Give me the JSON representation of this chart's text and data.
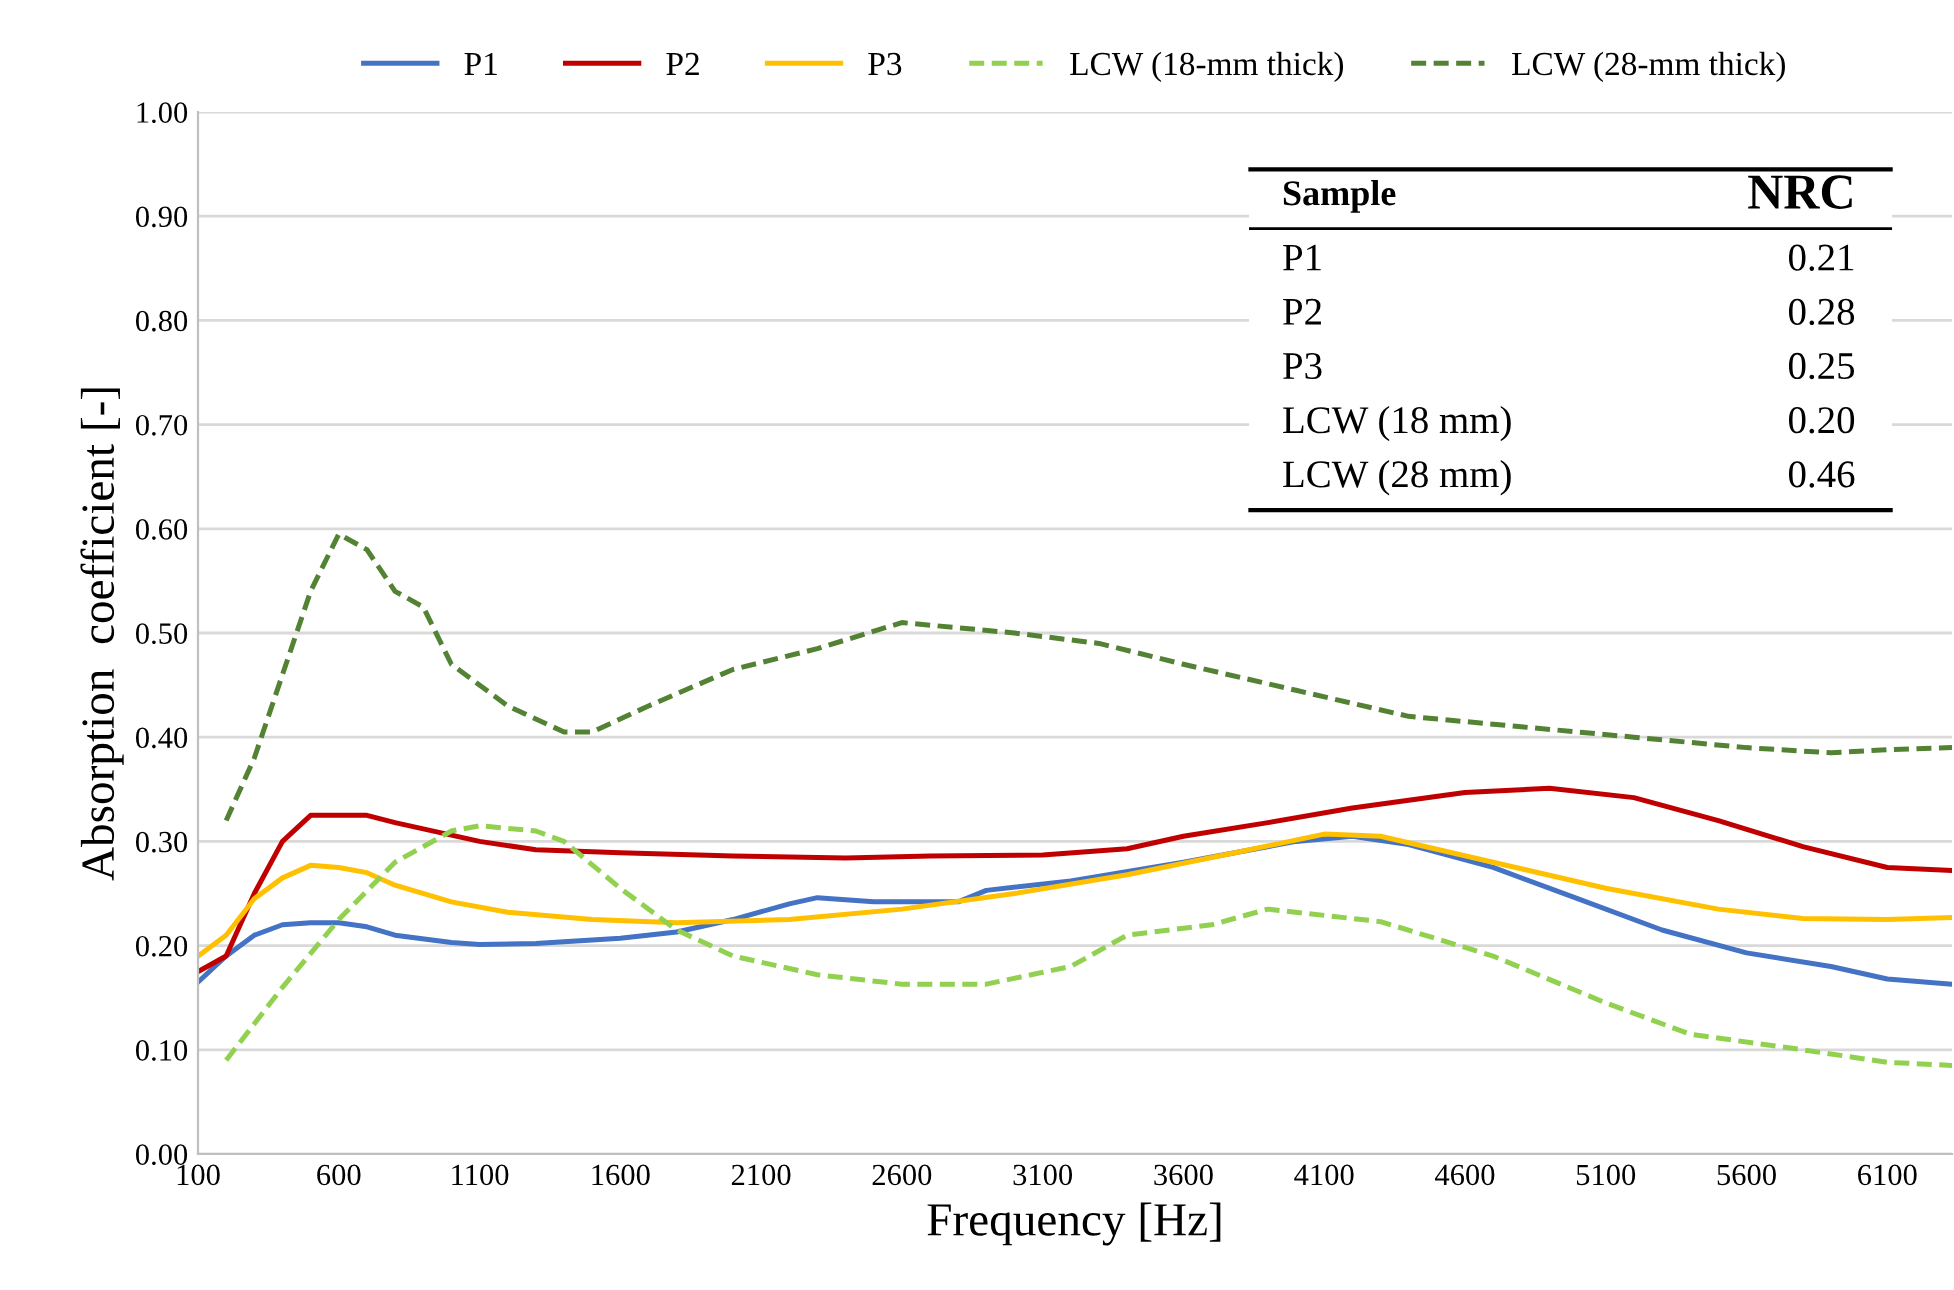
{
  "chart_data": {
    "type": "line",
    "xlabel": "Frequency [Hz]",
    "ylabel": "Absorption  coefficient [-]",
    "legend": "top",
    "grid": "y",
    "xlim": [
      100,
      6330
    ],
    "ylim": [
      0,
      1
    ],
    "xticks": [
      100,
      600,
      1100,
      1600,
      2100,
      2600,
      3100,
      3600,
      4100,
      4600,
      5100,
      5600,
      6100
    ],
    "yticks": [
      {
        "value": 0,
        "label": "0.00"
      },
      {
        "value": 0.1,
        "label": "0.10"
      },
      {
        "value": 0.2,
        "label": "0.20"
      },
      {
        "value": 0.3,
        "label": "0.30"
      },
      {
        "value": 0.4,
        "label": "0.40"
      },
      {
        "value": 0.5,
        "label": "0.50"
      },
      {
        "value": 0.6,
        "label": "0.60"
      },
      {
        "value": 0.7,
        "label": "0.70"
      },
      {
        "value": 0.8,
        "label": "0.80"
      },
      {
        "value": 0.9,
        "label": "0.90"
      },
      {
        "value": 1,
        "label": "1.00"
      }
    ],
    "annotations": [
      "Sample",
      "NRC",
      "P1",
      "0.21",
      "P2",
      "0.28",
      "P3",
      "0.25",
      "LCW (18 mm)",
      "0.20",
      "LCW (28 mm)",
      "0.46"
    ],
    "series": [
      {
        "name": "P1",
        "color": "#4472c4",
        "line_style": "solid",
        "x": [
          100,
          200,
          300,
          400,
          500,
          600,
          700,
          800,
          1000,
          1100,
          1300,
          1600,
          1800,
          2000,
          2200,
          2300,
          2500,
          2800,
          2900,
          3200,
          3600,
          4000,
          4200,
          4400,
          4700,
          5000,
          5300,
          5600,
          5900,
          6100,
          6330
        ],
        "values": [
          0.165,
          0.19,
          0.21,
          0.22,
          0.222,
          0.222,
          0.218,
          0.21,
          0.203,
          0.201,
          0.202,
          0.207,
          0.213,
          0.225,
          0.24,
          0.246,
          0.242,
          0.242,
          0.253,
          0.262,
          0.28,
          0.3,
          0.305,
          0.297,
          0.275,
          0.245,
          0.215,
          0.193,
          0.18,
          0.168,
          0.163
        ]
      },
      {
        "name": "P2",
        "color": "#c00000",
        "line_style": "solid",
        "x": [
          100,
          200,
          300,
          400,
          500,
          600,
          700,
          800,
          900,
          1100,
          1300,
          1600,
          2000,
          2400,
          2700,
          3100,
          3400,
          3600,
          3900,
          4200,
          4600,
          4900,
          5200,
          5500,
          5800,
          6100,
          6330
        ],
        "values": [
          0.175,
          0.19,
          0.25,
          0.3,
          0.325,
          0.325,
          0.325,
          0.318,
          0.312,
          0.3,
          0.292,
          0.289,
          0.286,
          0.284,
          0.286,
          0.287,
          0.293,
          0.305,
          0.318,
          0.332,
          0.347,
          0.351,
          0.342,
          0.32,
          0.295,
          0.275,
          0.272
        ]
      },
      {
        "name": "P3",
        "color": "#ffc000",
        "line_style": "solid",
        "x": [
          100,
          200,
          300,
          400,
          500,
          600,
          700,
          800,
          1000,
          1200,
          1500,
          1800,
          2200,
          2600,
          3000,
          3400,
          3800,
          4100,
          4300,
          4700,
          5100,
          5500,
          5800,
          6100,
          6330
        ],
        "values": [
          0.19,
          0.21,
          0.245,
          0.265,
          0.277,
          0.275,
          0.27,
          0.258,
          0.242,
          0.232,
          0.225,
          0.222,
          0.225,
          0.235,
          0.25,
          0.268,
          0.29,
          0.307,
          0.305,
          0.28,
          0.255,
          0.235,
          0.226,
          0.225,
          0.227
        ]
      },
      {
        "name": "LCW (18-mm thick)",
        "color": "#92d050",
        "line_style": "dashed",
        "x": [
          200,
          400,
          600,
          800,
          1000,
          1100,
          1300,
          1400,
          1600,
          1800,
          2000,
          2300,
          2600,
          2900,
          3200,
          3400,
          3700,
          3900,
          4300,
          4700,
          5100,
          5400,
          5800,
          6100,
          6330
        ],
        "values": [
          0.09,
          0.16,
          0.225,
          0.28,
          0.31,
          0.315,
          0.31,
          0.3,
          0.255,
          0.215,
          0.19,
          0.172,
          0.163,
          0.163,
          0.18,
          0.21,
          0.22,
          0.235,
          0.223,
          0.19,
          0.145,
          0.115,
          0.1,
          0.088,
          0.085
        ]
      },
      {
        "name": "LCW (28-mm thick)",
        "color": "#548235",
        "line_style": "dashed",
        "x": [
          200,
          300,
          400,
          500,
          600,
          700,
          800,
          900,
          1000,
          1200,
          1400,
          1500,
          1700,
          2000,
          2300,
          2600,
          3000,
          3300,
          3600,
          4000,
          4400,
          4800,
          5200,
          5600,
          5900,
          6100,
          6330
        ],
        "values": [
          0.32,
          0.38,
          0.46,
          0.54,
          0.595,
          0.58,
          0.54,
          0.525,
          0.47,
          0.43,
          0.405,
          0.405,
          0.43,
          0.465,
          0.485,
          0.51,
          0.5,
          0.49,
          0.47,
          0.445,
          0.42,
          0.41,
          0.4,
          0.39,
          0.385,
          0.388,
          0.39
        ]
      }
    ]
  }
}
